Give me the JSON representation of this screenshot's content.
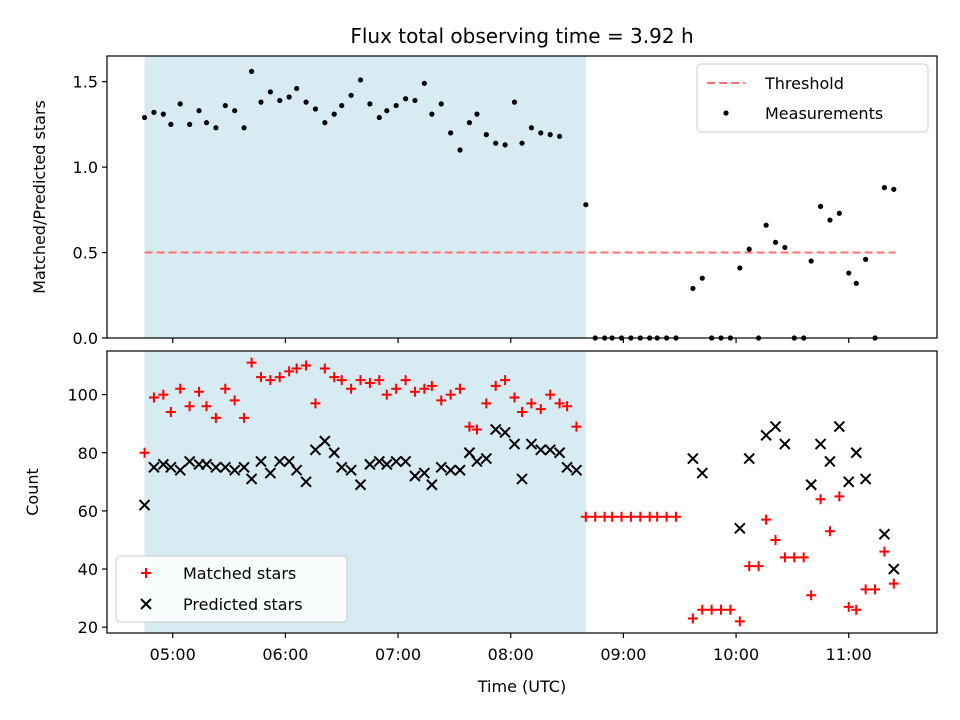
{
  "chart_data": [
    {
      "type": "scatter",
      "title": "Flux total observing time = 3.92 h",
      "xlabel": "",
      "ylabel": "Matched/Predicted stars",
      "xlim": [
        "04:25",
        "11:47"
      ],
      "ylim": [
        0,
        1.65
      ],
      "yticks": [
        "0.0",
        "0.5",
        "1.0",
        "1.5"
      ],
      "shaded_x": [
        "04:45",
        "08:40"
      ],
      "shade_color": "#add8e6",
      "threshold": {
        "name": "Threshold",
        "value": 0.5,
        "x": [
          "04:45",
          "11:25"
        ],
        "color": "#ff7070",
        "style": "dashed"
      },
      "series": [
        {
          "name": "Measurements",
          "color": "#000000",
          "marker": "dot",
          "points": [
            [
              "04:45",
              1.29
            ],
            [
              "04:50",
              1.32
            ],
            [
              "04:55",
              1.31
            ],
            [
              "04:59",
              1.25
            ],
            [
              "05:04",
              1.37
            ],
            [
              "05:09",
              1.25
            ],
            [
              "05:14",
              1.33
            ],
            [
              "05:18",
              1.26
            ],
            [
              "05:23",
              1.23
            ],
            [
              "05:28",
              1.36
            ],
            [
              "05:33",
              1.33
            ],
            [
              "05:38",
              1.23
            ],
            [
              "05:42",
              1.56
            ],
            [
              "05:47",
              1.38
            ],
            [
              "05:52",
              1.44
            ],
            [
              "05:57",
              1.39
            ],
            [
              "06:02",
              1.41
            ],
            [
              "06:06",
              1.46
            ],
            [
              "06:11",
              1.38
            ],
            [
              "06:16",
              1.34
            ],
            [
              "06:21",
              1.26
            ],
            [
              "06:26",
              1.31
            ],
            [
              "06:30",
              1.36
            ],
            [
              "06:35",
              1.42
            ],
            [
              "06:40",
              1.51
            ],
            [
              "06:45",
              1.37
            ],
            [
              "06:50",
              1.29
            ],
            [
              "06:54",
              1.33
            ],
            [
              "06:59",
              1.36
            ],
            [
              "07:04",
              1.4
            ],
            [
              "07:09",
              1.39
            ],
            [
              "07:14",
              1.49
            ],
            [
              "07:18",
              1.31
            ],
            [
              "07:23",
              1.37
            ],
            [
              "07:28",
              1.2
            ],
            [
              "07:33",
              1.1
            ],
            [
              "07:38",
              1.26
            ],
            [
              "07:42",
              1.31
            ],
            [
              "07:47",
              1.19
            ],
            [
              "07:52",
              1.14
            ],
            [
              "07:57",
              1.13
            ],
            [
              "08:02",
              1.38
            ],
            [
              "08:06",
              1.14
            ],
            [
              "08:11",
              1.23
            ],
            [
              "08:16",
              1.2
            ],
            [
              "08:21",
              1.19
            ],
            [
              "08:26",
              1.18
            ],
            [
              "08:40",
              0.78
            ],
            [
              "08:45",
              0.0
            ],
            [
              "08:50",
              0.0
            ],
            [
              "08:54",
              0.0
            ],
            [
              "08:59",
              0.0
            ],
            [
              "09:04",
              0.0
            ],
            [
              "09:09",
              0.0
            ],
            [
              "09:14",
              0.0
            ],
            [
              "09:18",
              0.0
            ],
            [
              "09:23",
              0.0
            ],
            [
              "09:28",
              0.0
            ],
            [
              "09:37",
              0.29
            ],
            [
              "09:42",
              0.35
            ],
            [
              "09:47",
              0.0
            ],
            [
              "09:52",
              0.0
            ],
            [
              "09:57",
              0.0
            ],
            [
              "10:02",
              0.41
            ],
            [
              "10:07",
              0.52
            ],
            [
              "10:12",
              0.0
            ],
            [
              "10:16",
              0.66
            ],
            [
              "10:21",
              0.56
            ],
            [
              "10:26",
              0.53
            ],
            [
              "10:31",
              0.0
            ],
            [
              "10:36",
              0.0
            ],
            [
              "10:40",
              0.45
            ],
            [
              "10:45",
              0.77
            ],
            [
              "10:50",
              0.69
            ],
            [
              "10:55",
              0.73
            ],
            [
              "11:00",
              0.38
            ],
            [
              "11:04",
              0.32
            ],
            [
              "11:09",
              0.46
            ],
            [
              "11:14",
              0.0
            ],
            [
              "11:19",
              0.88
            ],
            [
              "11:24",
              0.87
            ]
          ]
        }
      ],
      "legend": {
        "position": "top-right",
        "entries": [
          "Threshold",
          "Measurements"
        ]
      }
    },
    {
      "type": "scatter",
      "title": "",
      "xlabel": "Time (UTC)",
      "ylabel": "Count",
      "xlim": [
        "04:25",
        "11:47"
      ],
      "ylim": [
        18,
        115
      ],
      "xticks": [
        "05:00",
        "06:00",
        "07:00",
        "08:00",
        "09:00",
        "10:00",
        "11:00"
      ],
      "yticks": [
        "20",
        "40",
        "60",
        "80",
        "100"
      ],
      "shaded_x": [
        "04:45",
        "08:40"
      ],
      "shade_color": "#add8e6",
      "series": [
        {
          "name": "Matched stars",
          "color": "#ff0000",
          "marker": "plus",
          "points": [
            [
              "04:45",
              80
            ],
            [
              "04:50",
              99
            ],
            [
              "04:55",
              100
            ],
            [
              "04:59",
              94
            ],
            [
              "05:04",
              102
            ],
            [
              "05:09",
              96
            ],
            [
              "05:14",
              101
            ],
            [
              "05:18",
              96
            ],
            [
              "05:23",
              92
            ],
            [
              "05:28",
              102
            ],
            [
              "05:33",
              98
            ],
            [
              "05:38",
              92
            ],
            [
              "05:42",
              111
            ],
            [
              "05:47",
              106
            ],
            [
              "05:52",
              105
            ],
            [
              "05:57",
              106
            ],
            [
              "06:02",
              108
            ],
            [
              "06:06",
              109
            ],
            [
              "06:11",
              110
            ],
            [
              "06:16",
              97
            ],
            [
              "06:21",
              109
            ],
            [
              "06:26",
              106
            ],
            [
              "06:30",
              105
            ],
            [
              "06:35",
              102
            ],
            [
              "06:40",
              105
            ],
            [
              "06:45",
              104
            ],
            [
              "06:50",
              105
            ],
            [
              "06:54",
              100
            ],
            [
              "06:59",
              102
            ],
            [
              "07:04",
              105
            ],
            [
              "07:09",
              101
            ],
            [
              "07:14",
              102
            ],
            [
              "07:18",
              103
            ],
            [
              "07:23",
              98
            ],
            [
              "07:28",
              100
            ],
            [
              "07:33",
              102
            ],
            [
              "07:38",
              89
            ],
            [
              "07:42",
              88
            ],
            [
              "07:47",
              97
            ],
            [
              "07:52",
              103
            ],
            [
              "07:57",
              105
            ],
            [
              "08:02",
              99
            ],
            [
              "08:06",
              94
            ],
            [
              "08:11",
              97
            ],
            [
              "08:16",
              95
            ],
            [
              "08:21",
              100
            ],
            [
              "08:26",
              97
            ],
            [
              "08:30",
              96
            ],
            [
              "08:35",
              89
            ],
            [
              "08:40",
              58
            ],
            [
              "08:45",
              58
            ],
            [
              "08:50",
              58
            ],
            [
              "08:54",
              58
            ],
            [
              "08:59",
              58
            ],
            [
              "09:04",
              58
            ],
            [
              "09:09",
              58
            ],
            [
              "09:14",
              58
            ],
            [
              "09:18",
              58
            ],
            [
              "09:23",
              58
            ],
            [
              "09:28",
              58
            ],
            [
              "09:37",
              23
            ],
            [
              "09:42",
              26
            ],
            [
              "09:47",
              26
            ],
            [
              "09:52",
              26
            ],
            [
              "09:57",
              26
            ],
            [
              "10:02",
              22
            ],
            [
              "10:07",
              41
            ],
            [
              "10:12",
              41
            ],
            [
              "10:16",
              57
            ],
            [
              "10:21",
              50
            ],
            [
              "10:26",
              44
            ],
            [
              "10:31",
              44
            ],
            [
              "10:36",
              44
            ],
            [
              "10:40",
              31
            ],
            [
              "10:45",
              64
            ],
            [
              "10:50",
              53
            ],
            [
              "10:55",
              65
            ],
            [
              "11:00",
              27
            ],
            [
              "11:04",
              26
            ],
            [
              "11:09",
              33
            ],
            [
              "11:14",
              33
            ],
            [
              "11:19",
              46
            ],
            [
              "11:24",
              35
            ]
          ]
        },
        {
          "name": "Predicted stars",
          "color": "#000000",
          "marker": "x",
          "points": [
            [
              "04:45",
              62
            ],
            [
              "04:50",
              75
            ],
            [
              "04:55",
              76
            ],
            [
              "04:59",
              75
            ],
            [
              "05:04",
              74
            ],
            [
              "05:09",
              77
            ],
            [
              "05:14",
              76
            ],
            [
              "05:18",
              76
            ],
            [
              "05:23",
              75
            ],
            [
              "05:28",
              75
            ],
            [
              "05:33",
              74
            ],
            [
              "05:38",
              75
            ],
            [
              "05:42",
              71
            ],
            [
              "05:47",
              77
            ],
            [
              "05:52",
              73
            ],
            [
              "05:57",
              77
            ],
            [
              "06:02",
              77
            ],
            [
              "06:06",
              74
            ],
            [
              "06:11",
              70
            ],
            [
              "06:16",
              81
            ],
            [
              "06:21",
              84
            ],
            [
              "06:26",
              80
            ],
            [
              "06:30",
              75
            ],
            [
              "06:35",
              74
            ],
            [
              "06:40",
              69
            ],
            [
              "06:45",
              76
            ],
            [
              "06:50",
              77
            ],
            [
              "06:54",
              76
            ],
            [
              "06:59",
              77
            ],
            [
              "07:04",
              77
            ],
            [
              "07:09",
              72
            ],
            [
              "07:14",
              73
            ],
            [
              "07:18",
              69
            ],
            [
              "07:23",
              75
            ],
            [
              "07:28",
              74
            ],
            [
              "07:33",
              74
            ],
            [
              "07:38",
              80
            ],
            [
              "07:42",
              77
            ],
            [
              "07:47",
              78
            ],
            [
              "07:52",
              88
            ],
            [
              "07:57",
              87
            ],
            [
              "08:02",
              83
            ],
            [
              "08:06",
              71
            ],
            [
              "08:11",
              83
            ],
            [
              "08:16",
              81
            ],
            [
              "08:21",
              81
            ],
            [
              "08:26",
              80
            ],
            [
              "08:30",
              75
            ],
            [
              "08:35",
              74
            ],
            [
              "09:37",
              78
            ],
            [
              "09:42",
              73
            ],
            [
              "10:02",
              54
            ],
            [
              "10:07",
              78
            ],
            [
              "10:16",
              86
            ],
            [
              "10:21",
              89
            ],
            [
              "10:26",
              83
            ],
            [
              "10:40",
              69
            ],
            [
              "10:45",
              83
            ],
            [
              "10:50",
              77
            ],
            [
              "10:55",
              89
            ],
            [
              "11:00",
              70
            ],
            [
              "11:04",
              80
            ],
            [
              "11:09",
              71
            ],
            [
              "11:19",
              52
            ],
            [
              "11:24",
              40
            ]
          ]
        }
      ],
      "legend": {
        "position": "bottom-left",
        "entries": [
          "Matched stars",
          "Predicted stars"
        ]
      }
    }
  ]
}
